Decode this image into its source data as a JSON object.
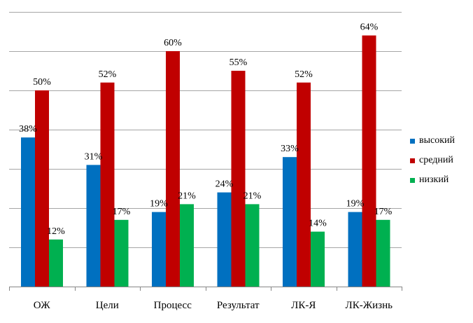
{
  "chart_data": {
    "type": "bar",
    "categories": [
      "ОЖ",
      "Цели",
      "Процесс",
      "Результат",
      "ЛК-Я",
      "ЛК-Жизнь"
    ],
    "series": [
      {
        "name": "высокий",
        "values": [
          38,
          31,
          19,
          24,
          33,
          19
        ],
        "color": "#0070c0"
      },
      {
        "name": "средний",
        "values": [
          50,
          52,
          60,
          55,
          52,
          64
        ],
        "color": "#c00000"
      },
      {
        "name": "низкий",
        "values": [
          12,
          17,
          21,
          21,
          14,
          17
        ],
        "color": "#00b050"
      }
    ],
    "value_suffix": "%",
    "ylim": [
      0,
      70
    ],
    "y_gridline_step": 10,
    "grid": true,
    "legend_position": "right"
  }
}
